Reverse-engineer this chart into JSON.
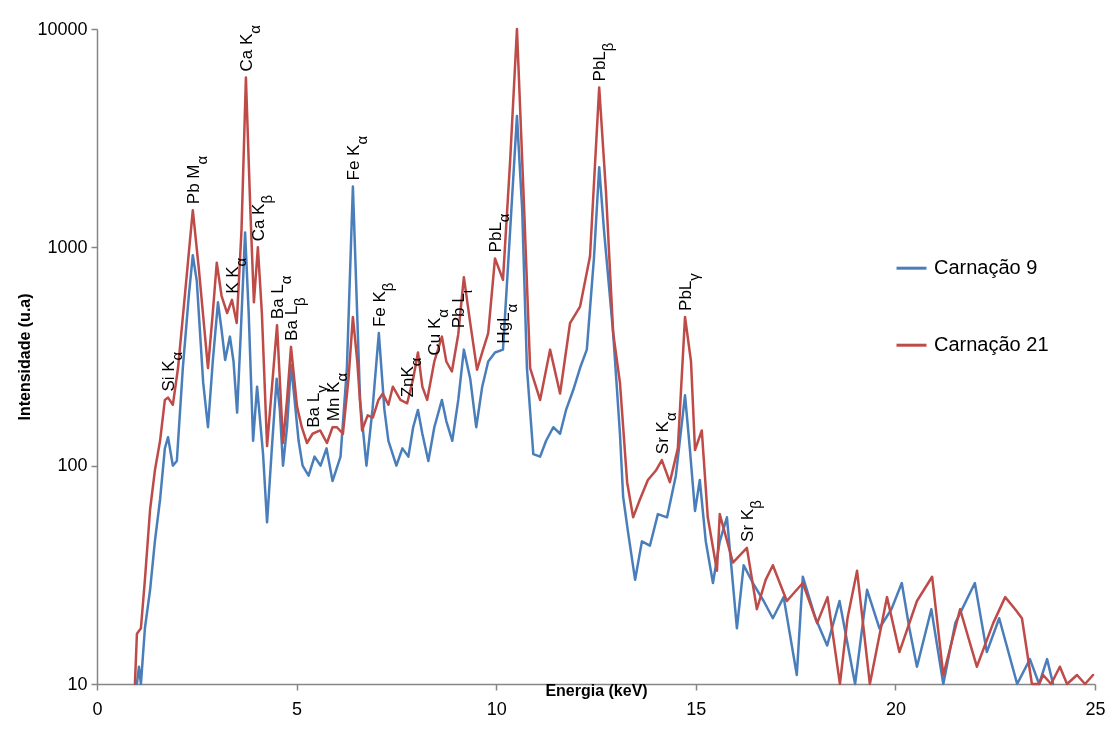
{
  "chart_data": {
    "type": "line",
    "xlabel": "Energia (keV)",
    "ylabel": "Intensidade (u.a)",
    "xlim": [
      0,
      25
    ],
    "xticks": [
      0,
      5,
      10,
      15,
      20,
      25
    ],
    "ylim": [
      10,
      10000
    ],
    "yticks": [
      10,
      100,
      1000,
      10000
    ],
    "log": true,
    "legend": "right",
    "line_style": "solid",
    "marker": "none",
    "series": [
      {
        "name": "Carnação 9",
        "color": "#4a7ebb",
        "x": [
          1.0,
          1.05,
          1.1,
          1.2,
          1.33,
          1.45,
          1.58,
          1.7,
          1.78,
          1.9,
          2.0,
          2.15,
          2.3,
          2.4,
          2.5,
          2.66,
          2.78,
          2.9,
          3.03,
          3.12,
          3.21,
          3.33,
          3.42,
          3.51,
          3.6,
          3.71,
          3.8,
          3.91,
          4.01,
          4.16,
          4.26,
          4.38,
          4.5,
          4.58,
          4.66,
          4.76,
          4.86,
          4.95,
          5.05,
          5.15,
          5.3,
          5.45,
          5.6,
          5.75,
          5.9,
          6.1,
          6.26,
          6.41,
          6.59,
          6.75,
          6.9,
          7.06,
          7.2,
          7.3,
          7.5,
          7.65,
          7.8,
          7.92,
          8.04,
          8.15,
          8.3,
          8.45,
          8.64,
          8.75,
          8.9,
          9.05,
          9.19,
          9.35,
          9.5,
          9.65,
          9.8,
          9.97,
          10.17,
          10.35,
          10.52,
          10.65,
          10.77,
          10.93,
          11.1,
          11.25,
          11.43,
          11.6,
          11.75,
          11.93,
          12.1,
          12.27,
          12.45,
          12.58,
          12.7,
          12.93,
          13.1,
          13.18,
          13.3,
          13.48,
          13.65,
          13.85,
          14.05,
          14.28,
          14.5,
          14.73,
          14.85,
          14.98,
          15.1,
          15.25,
          15.43,
          15.6,
          15.78,
          16.03,
          16.2,
          16.43,
          16.7,
          16.93,
          17.2,
          17.53,
          17.68,
          18.0,
          18.29,
          18.6,
          18.99,
          19.29,
          19.6,
          19.9,
          20.16,
          20.35,
          20.54,
          20.9,
          21.2,
          21.5,
          21.99,
          22.29,
          22.6,
          23.05,
          23.37,
          23.6,
          23.8,
          23.95
        ],
        "values": [
          10,
          12,
          10,
          18,
          27,
          45,
          70,
          120,
          135,
          100,
          105,
          280,
          600,
          920,
          700,
          240,
          150,
          300,
          560,
          420,
          305,
          390,
          300,
          175,
          400,
          1170,
          500,
          130,
          230,
          113,
          55,
          120,
          250,
          180,
          100,
          150,
          290,
          200,
          130,
          100,
          90,
          110,
          100,
          120,
          85,
          110,
          280,
          1900,
          200,
          100,
          180,
          405,
          180,
          130,
          100,
          120,
          110,
          150,
          180,
          140,
          105,
          150,
          200,
          160,
          130,
          200,
          340,
          250,
          150,
          230,
          300,
          330,
          340,
          1200,
          4000,
          1500,
          280,
          113,
          110,
          130,
          150,
          140,
          180,
          222,
          280,
          340,
          900,
          2330,
          1200,
          405,
          140,
          72,
          50,
          30,
          45,
          43,
          60,
          58,
          90,
          210,
          120,
          62,
          86,
          45,
          29,
          45,
          58,
          18,
          35,
          29,
          24,
          20,
          25,
          11,
          31,
          20,
          15,
          24,
          10,
          27,
          18,
          22,
          29,
          18,
          12,
          22,
          10,
          19,
          29,
          14,
          20,
          10,
          13,
          10,
          13,
          10
        ]
      },
      {
        "name": "Carnação 21",
        "color": "#be4b48",
        "x": [
          0.95,
          1.0,
          1.1,
          1.2,
          1.33,
          1.45,
          1.58,
          1.7,
          1.78,
          1.9,
          2.03,
          2.2,
          2.4,
          2.55,
          2.78,
          2.9,
          3.0,
          3.12,
          3.26,
          3.38,
          3.5,
          3.62,
          3.73,
          3.84,
          3.93,
          4.03,
          4.13,
          4.26,
          4.4,
          4.51,
          4.66,
          4.76,
          4.86,
          5.01,
          5.13,
          5.26,
          5.4,
          5.59,
          5.76,
          5.9,
          6.01,
          6.16,
          6.3,
          6.41,
          6.52,
          6.64,
          6.78,
          6.91,
          7.05,
          7.16,
          7.3,
          7.41,
          7.6,
          7.77,
          7.92,
          8.04,
          8.15,
          8.27,
          8.45,
          8.64,
          8.75,
          8.89,
          9.05,
          9.19,
          9.35,
          9.52,
          9.65,
          9.8,
          9.97,
          10.17,
          10.35,
          10.52,
          10.7,
          10.85,
          11.1,
          11.35,
          11.6,
          11.85,
          12.1,
          12.35,
          12.58,
          12.75,
          12.93,
          13.1,
          13.28,
          13.43,
          13.6,
          13.8,
          14.0,
          14.15,
          14.35,
          14.55,
          14.73,
          14.88,
          14.98,
          15.15,
          15.3,
          15.53,
          15.6,
          15.93,
          16.28,
          16.53,
          16.75,
          16.93,
          17.28,
          17.68,
          18.04,
          18.3,
          18.61,
          18.8,
          19.04,
          19.36,
          19.79,
          20.1,
          20.54,
          20.92,
          21.2,
          21.62,
          22.04,
          22.45,
          22.75,
          23.0,
          23.17,
          23.42,
          23.6,
          23.7,
          23.9,
          24.12,
          24.3,
          24.55,
          24.75,
          24.95
        ],
        "values": [
          10,
          17,
          18,
          30,
          63,
          95,
          130,
          200,
          205,
          190,
          280,
          600,
          1480,
          800,
          280,
          500,
          850,
          600,
          500,
          575,
          450,
          1200,
          6000,
          1500,
          560,
          1000,
          500,
          123,
          250,
          440,
          127,
          200,
          350,
          187,
          150,
          127,
          140,
          145,
          127,
          150,
          150,
          140,
          250,
          480,
          300,
          145,
          170,
          166,
          200,
          214,
          190,
          230,
          200,
          193,
          250,
          330,
          230,
          200,
          300,
          390,
          300,
          270,
          400,
          730,
          450,
          275,
          330,
          405,
          890,
          710,
          2500,
          10000,
          1500,
          280,
          200,
          340,
          214,
          450,
          535,
          910,
          5400,
          1800,
          405,
          240,
          84,
          58,
          70,
          86,
          95,
          106,
          84,
          120,
          480,
          300,
          118,
          145,
          58,
          33,
          60,
          36,
          42,
          22,
          30,
          35,
          24,
          29,
          19,
          25,
          10,
          20,
          33,
          10,
          25,
          14,
          24,
          31,
          11,
          22,
          12,
          19,
          25,
          22,
          20,
          10,
          10,
          11,
          10,
          12,
          10,
          11,
          10,
          11
        ]
      }
    ],
    "annotations": [
      {
        "text": "Si K$_{α}$",
        "x": 1.78,
        "y": 205
      },
      {
        "text": "Pb  M$_{α}$",
        "x": 2.4,
        "y": 1480
      },
      {
        "text": "Ca K$_{α}$",
        "x": 3.73,
        "y": 6000
      },
      {
        "text": "K K$_{α}$",
        "x": 3.38,
        "y": 575
      },
      {
        "text": "Ca K$_{β}$",
        "x": 4.03,
        "y": 1000
      },
      {
        "text": "Ba L$_{α}$",
        "x": 4.51,
        "y": 440
      },
      {
        "text": "Ba L$_{β}$",
        "x": 4.86,
        "y": 350
      },
      {
        "text": "Ba L$_{γ}$",
        "x": 5.4,
        "y": 140
      },
      {
        "text": "Mn K$_{α}$",
        "x": 5.9,
        "y": 150
      },
      {
        "text": "Fe K$_{α}$",
        "x": 6.41,
        "y": 1900
      },
      {
        "text": "Fe K$_{β}$",
        "x": 7.06,
        "y": 405
      },
      {
        "text": "ZnK$_{α}$",
        "x": 7.77,
        "y": 193
      },
      {
        "text": "Cu K$_{α}$",
        "x": 8.45,
        "y": 300
      },
      {
        "text": "Pb L$_{ι}$",
        "x": 9.05,
        "y": 400
      },
      {
        "text": "PbL$_{α}$",
        "x": 9.97,
        "y": 890
      },
      {
        "text": "HgL$_{α}$",
        "x": 10.17,
        "y": 340
      },
      {
        "text": "PbL$_{β}$",
        "x": 12.58,
        "y": 5400
      },
      {
        "text": "PbL$_{γ}$",
        "x": 14.73,
        "y": 480
      },
      {
        "text": "Sr K$_{α}$",
        "x": 14.15,
        "y": 106
      },
      {
        "text": "Sr K$_{β}$",
        "x": 16.28,
        "y": 42
      }
    ]
  }
}
